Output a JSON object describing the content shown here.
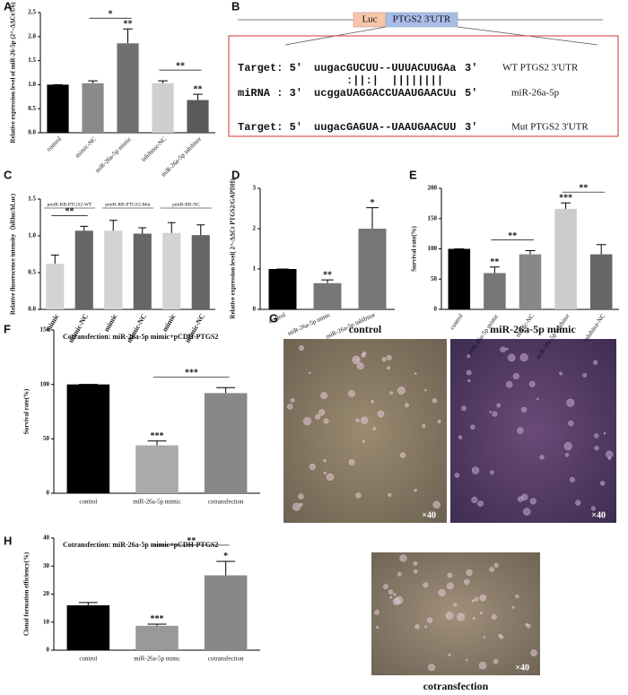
{
  "panel_labels": [
    "A",
    "B",
    "C",
    "D",
    "E",
    "F",
    "G",
    "H"
  ],
  "chart_data": [
    {
      "type": "bar",
      "ylabel": "Relative expression level of miR-26-5p (2^-ΔΔCt/U6)",
      "categories": [
        "control",
        "mimic-NC",
        "miR-26a-5p mimic",
        "inhibitor-NC",
        "miR-26a-5p inhibitor"
      ],
      "values": [
        1.0,
        1.03,
        1.86,
        1.03,
        0.68
      ],
      "errors": [
        0,
        0.05,
        0.3,
        0.05,
        0.12
      ],
      "colors": [
        "#000000",
        "#8a8a8a",
        "#707070",
        "#cfcfcf",
        "#5a5a5a"
      ],
      "ylim": [
        0,
        2.5
      ],
      "yticks": [
        {
          "value": 0,
          "label": "0.0"
        },
        0.5,
        {
          "value": 1,
          "label": "1.0"
        },
        1.5,
        {
          "value": 2,
          "label": "2.0"
        },
        2.5
      ],
      "annotations": [
        "*",
        "**",
        "**",
        "**"
      ]
    },
    {
      "type": "bar",
      "ylabel": "Relative fluorescence intensity（hRluc/hLuc)",
      "categories": [
        "mimic",
        "mimic-NC",
        "mimic",
        "mimic-NC",
        "mimic",
        "mimic-NC"
      ],
      "group_labels": [
        "pmiR-RB-PTGS2-WT",
        "pmiR-RB-PTGS2-Mut",
        "pmiR-RB-NC"
      ],
      "values": [
        0.62,
        1.07,
        1.07,
        1.03,
        1.04,
        1.01
      ],
      "errors": [
        0.12,
        0.06,
        0.14,
        0.08,
        0.14,
        0.14
      ],
      "colors": [
        "#d3d3d3",
        "#666666",
        "#d3d3d3",
        "#666666",
        "#d3d3d3",
        "#666666"
      ],
      "ylim": [
        0,
        1.5
      ],
      "yticks": [
        {
          "value": 0,
          "label": "0.0"
        },
        0.5,
        {
          "value": 1,
          "label": "1.0"
        },
        1.5
      ],
      "annotations": [
        "**"
      ]
    },
    {
      "type": "bar",
      "ylabel": "Relative expression level( 2^-ΔΔCt PTGS2/GAPDH)",
      "categories": [
        "control",
        "miR-26a-5p mimc",
        "miR-26a-5p inhibitor"
      ],
      "values": [
        1.0,
        0.65,
        2.0
      ],
      "errors": [
        0,
        0.08,
        0.52
      ],
      "colors": [
        "#000000",
        "#777777",
        "#777777"
      ],
      "ylim": [
        0,
        3
      ],
      "yticks": [
        0,
        1,
        2,
        3
      ],
      "annotations": [
        "**",
        "*"
      ]
    },
    {
      "type": "bar",
      "ylabel": "Survival rate(%)",
      "categories": [
        "control",
        "miR-26a-5p mimic",
        "mimic-NC",
        "miR-26a-5p inhibitor",
        "inhibitor-NC"
      ],
      "values": [
        100,
        60,
        91,
        166,
        91
      ],
      "errors": [
        0,
        10,
        6,
        10,
        16
      ],
      "colors": [
        "#000000",
        "#777777",
        "#888888",
        "#cccccc",
        "#666666"
      ],
      "ylim": [
        0,
        200
      ],
      "yticks": [
        0,
        50,
        100,
        150,
        200
      ],
      "annotations": [
        "**",
        "**",
        "***",
        "**"
      ]
    },
    {
      "type": "bar",
      "title": "Cotransfection: miR-26a-5p mimic+pCDH-PTGS2",
      "ylabel": "Survival rate(%)",
      "categories": [
        "control",
        "miR-26a-5p mimic",
        "cotransfection"
      ],
      "values": [
        100,
        44,
        92
      ],
      "errors": [
        0,
        4,
        5
      ],
      "colors": [
        "#000000",
        "#aaaaaa",
        "#888888"
      ],
      "ylim": [
        0,
        150
      ],
      "yticks": [
        0,
        50,
        100,
        150
      ],
      "annotations": [
        "***",
        "***"
      ]
    },
    {
      "type": "bar",
      "title": "Cotransfection: miR-26a-5p mimic+pCDH-PTGS2",
      "ylabel": "Clonal formation efficiency(%)",
      "categories": [
        "control",
        "miR-26a-5p mimc",
        "cotransfection"
      ],
      "values": [
        16,
        8.7,
        26.7
      ],
      "errors": [
        1,
        0.6,
        5
      ],
      "colors": [
        "#000000",
        "#999999",
        "#888888"
      ],
      "ylim": [
        0,
        40
      ],
      "yticks": [
        0,
        10,
        20,
        30,
        40
      ],
      "annotations": [
        "***",
        "**",
        "*"
      ]
    }
  ],
  "panel_b": {
    "luc": "Luc",
    "utr": "PTGS2 3'UTR",
    "rows": [
      {
        "prefix": "Target: 5'",
        "seq": "uugacGUCUU--UUUACUUGAa",
        "suffix": "3'",
        "label": "WT PTGS2 3'UTR"
      },
      {
        "pairs": ":||:|  ||||||||"
      },
      {
        "prefix": "miRNA : 3'",
        "seq": "ucggaUAGGACCUAAUGAACUu",
        "suffix": "5'",
        "label": "miR-26a-5p"
      },
      {
        "prefix": "Target: 5'",
        "seq": "uugacGAGUA--UAAUGAACUU",
        "suffix": "3'",
        "label": "Mut PTGS2 3'UTR"
      }
    ]
  },
  "panel_g": {
    "labels": [
      "control",
      "miR-26a-5p mimic",
      "cotransfection"
    ],
    "magnification": [
      "×40",
      "×40",
      "×40"
    ]
  }
}
